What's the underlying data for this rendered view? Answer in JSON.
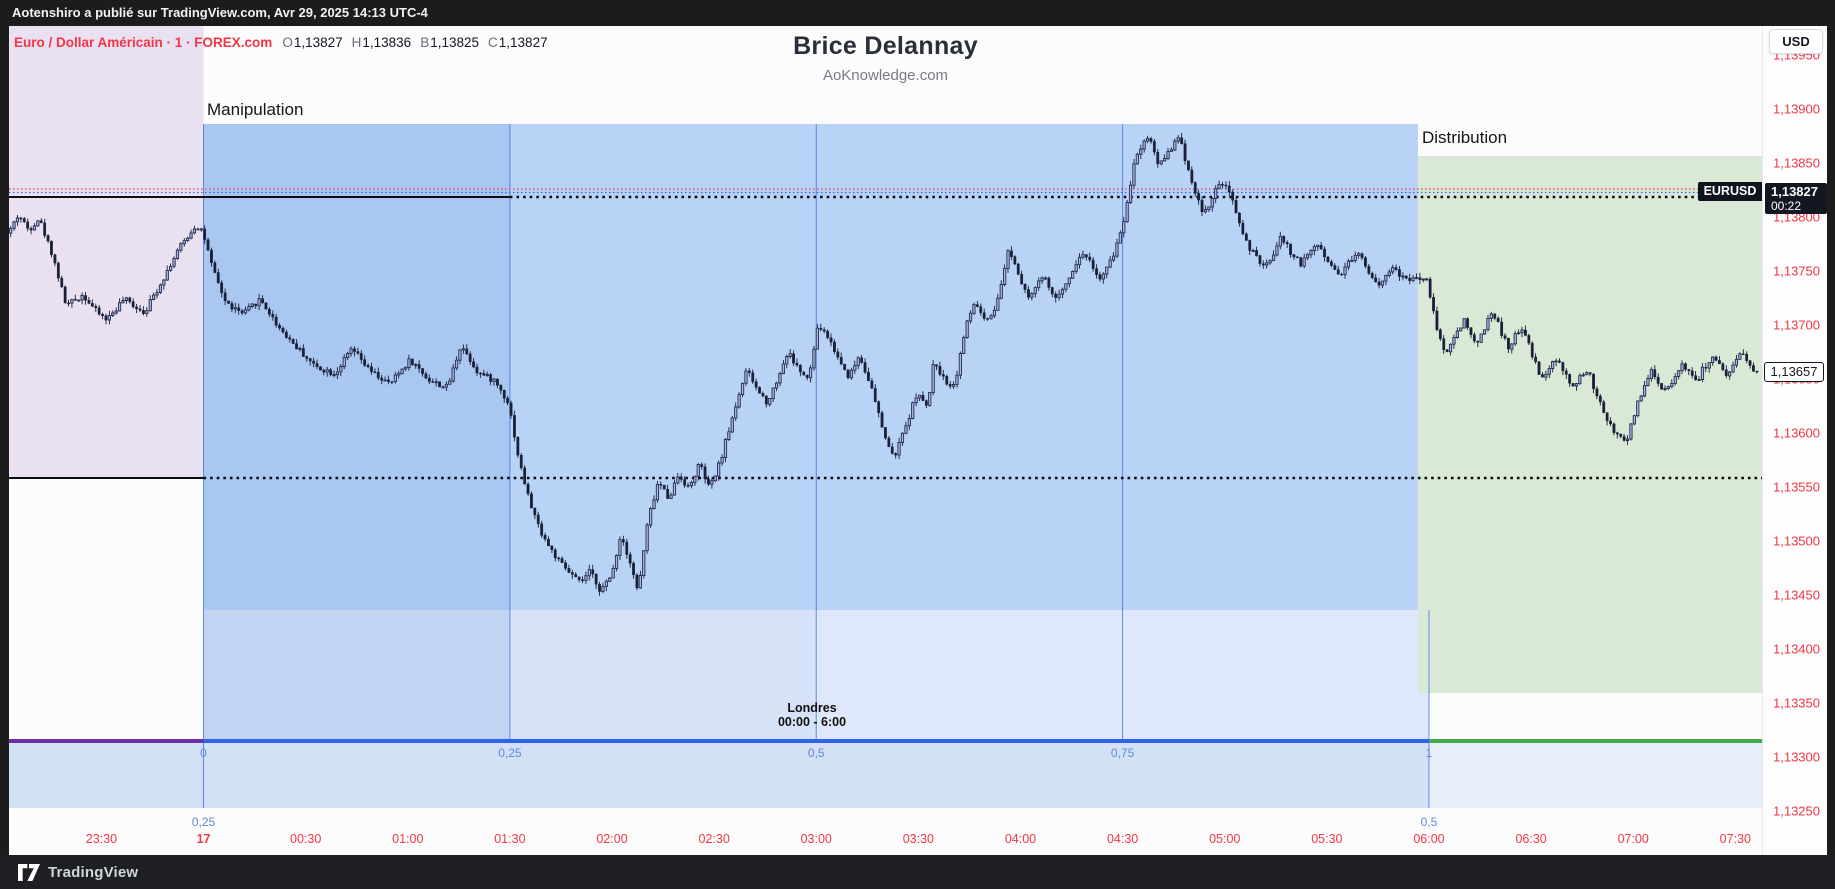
{
  "publish_bar": {
    "text": "Aotenshiro a publié sur TradingView.com, Avr 29, 2025 14:13 UTC-4"
  },
  "toolbar": {
    "symbol_title": "Euro / Dollar Américain · 1 · FOREX.com",
    "ohlc": [
      {
        "k": "O",
        "v": "1,13827"
      },
      {
        "k": "H",
        "v": "1,13836"
      },
      {
        "k": "B",
        "v": "1,13825"
      },
      {
        "k": "C",
        "v": "1,13827"
      }
    ]
  },
  "watermark": {
    "title": "Brice Delannay",
    "subtitle": "AoKnowledge.com"
  },
  "annotations": {
    "manipulation": "Manipulation",
    "distribution": "Distribution",
    "session_line1": "Londres",
    "session_line2": "00:00 - 6:00"
  },
  "price_axis": {
    "currency_button": "USD",
    "labels": [
      "1,13950",
      "1,13900",
      "1,13850",
      "1,13800",
      "1,13750",
      "1,13700",
      "1,13650",
      "1,13600",
      "1,13550",
      "1,13500",
      "1,13450",
      "1,13400",
      "1,13350",
      "1,13300",
      "1,13250"
    ],
    "marker_symbol": "EURUSD",
    "marker_price": "1,13827",
    "marker_countdown": "00:22",
    "last_price": "1,13657"
  },
  "time_axis": {
    "labels": [
      "23:30",
      "17",
      "00:30",
      "01:00",
      "01:30",
      "02:00",
      "02:30",
      "03:00",
      "03:30",
      "04:00",
      "04:30",
      "05:00",
      "05:30",
      "06:00",
      "06:30",
      "07:00",
      "07:30"
    ],
    "bold_index": 1
  },
  "fib": {
    "row1": [
      "0",
      "0,25",
      "0,5",
      "0,75",
      "1"
    ],
    "row2": [
      "0,25",
      "0,5"
    ]
  },
  "footer": {
    "brand": "TradingView"
  },
  "colors": {
    "accent_red": "#f23645",
    "tv_blue": "#2962ff",
    "session_purple": "#6b2fa8",
    "session_green": "#45ab4f",
    "zone_purple": "#e9e1f2",
    "zone_blue": "#b9d3f6",
    "zone_green": "#d9e9d5",
    "candle_up": "#a9b6e9",
    "candle_down": "#1a2038"
  },
  "chart_data": {
    "type": "candlestick",
    "symbol": "EURUSD",
    "interval": "1 minute",
    "session_shaded": "Londres 00:00 - 6:00",
    "price_top_label": 1.139,
    "price_step": 0.0005,
    "start_clock": "23:03",
    "minutes_total": 514,
    "path_anchors": [
      [
        0,
        1.13785
      ],
      [
        3,
        1.13802
      ],
      [
        6,
        1.13788
      ],
      [
        9,
        1.13799
      ],
      [
        13,
        1.13765
      ],
      [
        17,
        1.13718
      ],
      [
        22,
        1.13728
      ],
      [
        26,
        1.13712
      ],
      [
        29,
        1.13705
      ],
      [
        34,
        1.13724
      ],
      [
        40,
        1.13712
      ],
      [
        45,
        1.1374
      ],
      [
        50,
        1.1377
      ],
      [
        55,
        1.13792
      ],
      [
        57,
        1.13788
      ],
      [
        60,
        1.13752
      ],
      [
        64,
        1.1372
      ],
      [
        69,
        1.1371
      ],
      [
        74,
        1.13724
      ],
      [
        79,
        1.137
      ],
      [
        84,
        1.13682
      ],
      [
        90,
        1.13662
      ],
      [
        96,
        1.13655
      ],
      [
        101,
        1.13678
      ],
      [
        106,
        1.13658
      ],
      [
        112,
        1.13645
      ],
      [
        118,
        1.13668
      ],
      [
        124,
        1.13648
      ],
      [
        129,
        1.13642
      ],
      [
        133,
        1.13682
      ],
      [
        138,
        1.13656
      ],
      [
        143,
        1.13648
      ],
      [
        147,
        1.13628
      ],
      [
        150,
        1.13575
      ],
      [
        153,
        1.13538
      ],
      [
        156,
        1.13512
      ],
      [
        159,
        1.13494
      ],
      [
        162,
        1.1348
      ],
      [
        165,
        1.1347
      ],
      [
        168,
        1.13461
      ],
      [
        171,
        1.13472
      ],
      [
        174,
        1.13454
      ],
      [
        177,
        1.13466
      ],
      [
        180,
        1.13506
      ],
      [
        183,
        1.13478
      ],
      [
        185,
        1.13452
      ],
      [
        188,
        1.1352
      ],
      [
        191,
        1.13555
      ],
      [
        194,
        1.1354
      ],
      [
        197,
        1.13562
      ],
      [
        200,
        1.13548
      ],
      [
        203,
        1.13572
      ],
      [
        206,
        1.13548
      ],
      [
        209,
        1.13572
      ],
      [
        212,
        1.13606
      ],
      [
        215,
        1.1364
      ],
      [
        217,
        1.13658
      ],
      [
        220,
        1.1364
      ],
      [
        223,
        1.13628
      ],
      [
        226,
        1.1365
      ],
      [
        229,
        1.13675
      ],
      [
        232,
        1.1366
      ],
      [
        235,
        1.13648
      ],
      [
        238,
        1.137
      ],
      [
        241,
        1.13688
      ],
      [
        244,
        1.13668
      ],
      [
        247,
        1.13652
      ],
      [
        250,
        1.13672
      ],
      [
        253,
        1.13648
      ],
      [
        257,
        1.13602
      ],
      [
        260,
        1.13576
      ],
      [
        263,
        1.136
      ],
      [
        267,
        1.13638
      ],
      [
        270,
        1.13622
      ],
      [
        272,
        1.13668
      ],
      [
        275,
        1.13648
      ],
      [
        278,
        1.13644
      ],
      [
        281,
        1.13695
      ],
      [
        284,
        1.13722
      ],
      [
        287,
        1.13702
      ],
      [
        290,
        1.13712
      ],
      [
        294,
        1.13772
      ],
      [
        297,
        1.13745
      ],
      [
        300,
        1.13726
      ],
      [
        304,
        1.13745
      ],
      [
        308,
        1.13722
      ],
      [
        312,
        1.13748
      ],
      [
        316,
        1.13768
      ],
      [
        319,
        1.13752
      ],
      [
        321,
        1.1374
      ],
      [
        325,
        1.13768
      ],
      [
        328,
        1.138
      ],
      [
        331,
        1.13856
      ],
      [
        335,
        1.13876
      ],
      [
        338,
        1.13848
      ],
      [
        341,
        1.13862
      ],
      [
        344,
        1.13874
      ],
      [
        347,
        1.1384
      ],
      [
        351,
        1.13802
      ],
      [
        354,
        1.13818
      ],
      [
        356,
        1.13834
      ],
      [
        359,
        1.1382
      ],
      [
        364,
        1.13774
      ],
      [
        369,
        1.13752
      ],
      [
        372,
        1.13768
      ],
      [
        374,
        1.13782
      ],
      [
        377,
        1.13766
      ],
      [
        380,
        1.13756
      ],
      [
        383,
        1.13772
      ],
      [
        385,
        1.13774
      ],
      [
        388,
        1.13758
      ],
      [
        391,
        1.13746
      ],
      [
        394,
        1.1376
      ],
      [
        397,
        1.13766
      ],
      [
        400,
        1.13748
      ],
      [
        403,
        1.13736
      ],
      [
        405,
        1.1375
      ],
      [
        407,
        1.13752
      ],
      [
        410,
        1.13742
      ],
      [
        413,
        1.13744
      ],
      [
        417,
        1.1374
      ],
      [
        419,
        1.13706
      ],
      [
        422,
        1.13672
      ],
      [
        425,
        1.1369
      ],
      [
        428,
        1.13706
      ],
      [
        431,
        1.1368
      ],
      [
        434,
        1.137
      ],
      [
        436,
        1.13714
      ],
      [
        439,
        1.1369
      ],
      [
        441,
        1.13676
      ],
      [
        443,
        1.13692
      ],
      [
        445,
        1.13698
      ],
      [
        448,
        1.13668
      ],
      [
        451,
        1.13648
      ],
      [
        453,
        1.13662
      ],
      [
        455,
        1.13668
      ],
      [
        458,
        1.1365
      ],
      [
        460,
        1.13642
      ],
      [
        462,
        1.13652
      ],
      [
        464,
        1.13658
      ],
      [
        467,
        1.13632
      ],
      [
        469,
        1.13616
      ],
      [
        472,
        1.136
      ],
      [
        475,
        1.1359
      ],
      [
        477,
        1.1361
      ],
      [
        479,
        1.1363
      ],
      [
        481,
        1.13648
      ],
      [
        483,
        1.13658
      ],
      [
        485,
        1.13646
      ],
      [
        487,
        1.13637
      ],
      [
        489,
        1.1365
      ],
      [
        492,
        1.13665
      ],
      [
        494,
        1.13655
      ],
      [
        496,
        1.13648
      ],
      [
        498,
        1.1366
      ],
      [
        501,
        1.13672
      ],
      [
        503,
        1.1366
      ],
      [
        505,
        1.1365
      ],
      [
        507,
        1.13662
      ],
      [
        509,
        1.13675
      ],
      [
        511,
        1.13664
      ],
      [
        513,
        1.13657
      ]
    ],
    "levels_dotted": [
      {
        "name": "marked-level-high",
        "y_price": 1.13819
      },
      {
        "name": "marked-level-low",
        "y_price": 1.13558
      }
    ]
  }
}
